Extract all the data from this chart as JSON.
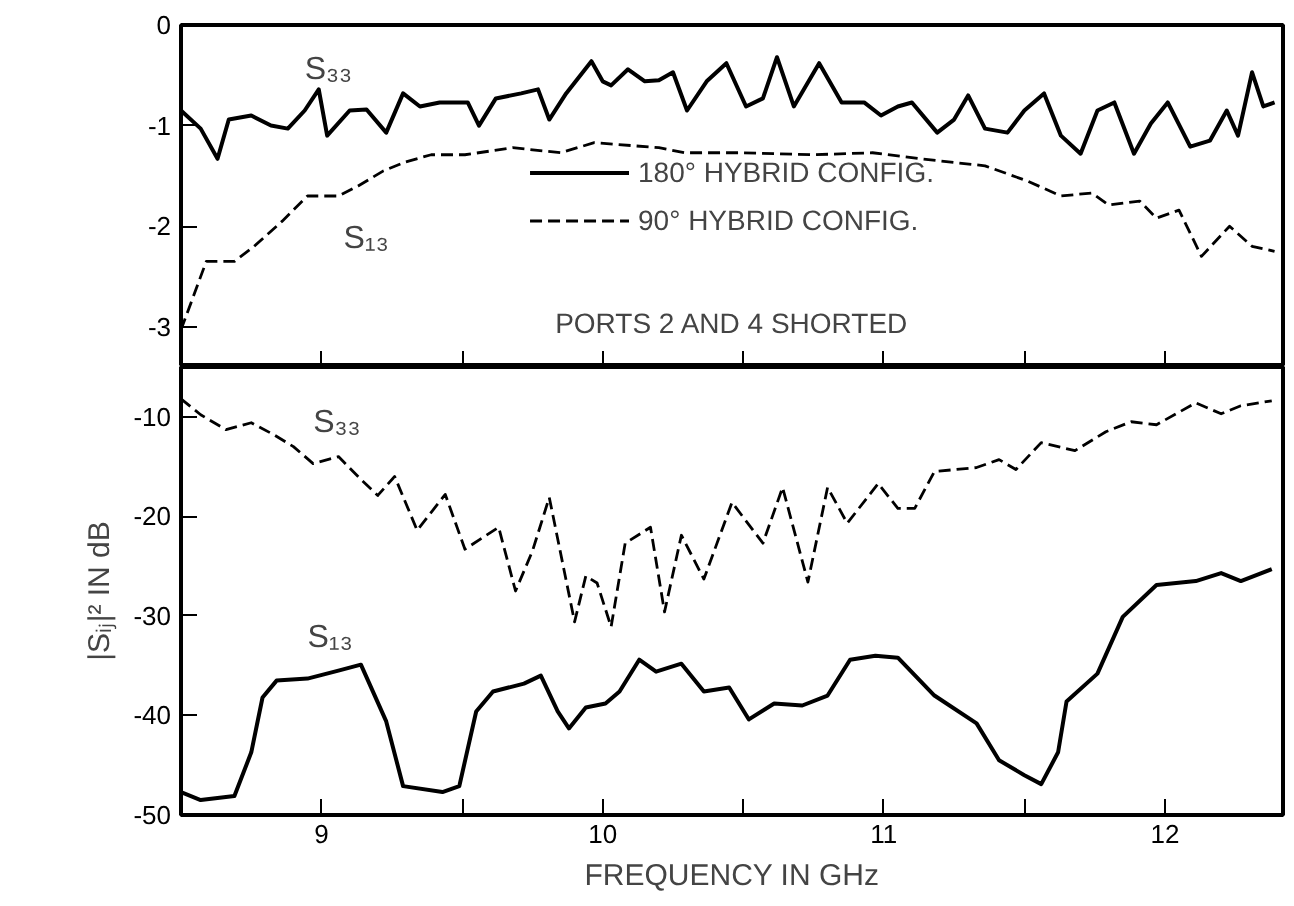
{
  "chart_data": [
    {
      "type": "line",
      "ylabel": null,
      "xlim": [
        8.5,
        12.42
      ],
      "ylim": [
        -3.4,
        0
      ],
      "xticks": [
        {
          "value": 9,
          "label": null
        },
        {
          "value": 9.5,
          "label": null
        },
        {
          "value": 10,
          "label": null
        },
        {
          "value": 10.5,
          "label": null
        },
        {
          "value": 11,
          "label": null
        },
        {
          "value": 11.5,
          "label": null
        },
        {
          "value": 12,
          "label": null
        }
      ],
      "yticks": [
        0,
        -1,
        -2,
        -3
      ],
      "tick_labels": "y",
      "grid": false,
      "legend": "center",
      "annotations": [
        "S₃₃",
        "S₁₃",
        "PORTS 2 AND 4 SHORTED"
      ],
      "series": [
        {
          "name": "180° HYBRID CONFIG.",
          "color": "#000000",
          "line_style": "solid",
          "x": [
            8.5,
            8.57,
            8.63,
            8.67,
            8.75,
            8.82,
            8.88,
            8.94,
            8.99,
            9.02,
            9.1,
            9.16,
            9.23,
            9.29,
            9.35,
            9.42,
            9.52,
            9.56,
            9.62,
            9.71,
            9.77,
            9.81,
            9.87,
            9.96,
            10.0,
            10.03,
            10.09,
            10.15,
            10.2,
            10.25,
            10.3,
            10.37,
            10.44,
            10.51,
            10.57,
            10.62,
            10.68,
            10.77,
            10.85,
            10.93,
            10.99,
            11.05,
            11.1,
            11.19,
            11.25,
            11.3,
            11.36,
            11.44,
            11.5,
            11.57,
            11.63,
            11.7,
            11.76,
            11.82,
            11.89,
            11.95,
            12.01,
            12.09,
            12.16,
            12.22,
            12.26,
            12.31,
            12.35,
            12.39
          ],
          "values": [
            -0.85,
            -1.03,
            -1.33,
            -0.94,
            -0.9,
            -1.0,
            -1.03,
            -0.85,
            -0.64,
            -1.1,
            -0.85,
            -0.84,
            -1.07,
            -0.68,
            -0.81,
            -0.77,
            -0.77,
            -1.0,
            -0.73,
            -0.68,
            -0.64,
            -0.94,
            -0.68,
            -0.36,
            -0.56,
            -0.6,
            -0.44,
            -0.56,
            -0.55,
            -0.47,
            -0.85,
            -0.56,
            -0.38,
            -0.81,
            -0.73,
            -0.32,
            -0.81,
            -0.38,
            -0.77,
            -0.77,
            -0.9,
            -0.81,
            -0.77,
            -1.07,
            -0.94,
            -0.7,
            -1.03,
            -1.07,
            -0.85,
            -0.68,
            -1.1,
            -1.28,
            -0.85,
            -0.77,
            -1.28,
            -0.98,
            -0.77,
            -1.21,
            -1.15,
            -0.85,
            -1.1,
            -0.47,
            -0.81,
            -0.77
          ]
        },
        {
          "name": "90° HYBRID CONFIG.",
          "color": "#000000",
          "line_style": "dashed",
          "x": [
            8.5,
            8.59,
            8.69,
            8.76,
            8.86,
            8.95,
            9.06,
            9.13,
            9.22,
            9.3,
            9.39,
            9.51,
            9.68,
            9.85,
            9.97,
            10.2,
            10.29,
            10.49,
            10.75,
            10.96,
            11.13,
            11.36,
            11.51,
            11.63,
            11.74,
            11.8,
            11.91,
            11.97,
            12.05,
            12.13,
            12.23,
            12.31,
            12.39
          ],
          "values": [
            -3.03,
            -2.35,
            -2.35,
            -2.2,
            -1.95,
            -1.7,
            -1.7,
            -1.6,
            -1.45,
            -1.36,
            -1.29,
            -1.29,
            -1.22,
            -1.27,
            -1.17,
            -1.22,
            -1.27,
            -1.27,
            -1.29,
            -1.27,
            -1.33,
            -1.4,
            -1.55,
            -1.7,
            -1.67,
            -1.79,
            -1.75,
            -1.92,
            -1.84,
            -2.3,
            -2.0,
            -2.2,
            -2.25
          ]
        }
      ]
    },
    {
      "type": "line",
      "ylabel": "|Sᵢⱼ|² IN dB",
      "xlabel": "FREQUENCY IN GHz",
      "xlim": [
        8.5,
        12.42
      ],
      "ylim": [
        -50,
        -5
      ],
      "xticks": [
        9,
        {
          "value": 9.5,
          "label": null
        },
        10,
        {
          "value": 10.5,
          "label": null
        },
        11,
        {
          "value": 11.5,
          "label": null
        },
        12
      ],
      "yticks": [
        -10,
        -20,
        -30,
        -40,
        -50
      ],
      "grid": false,
      "annotations": [
        "S₃₃",
        "S₁₃"
      ],
      "series": [
        {
          "color": "#000000",
          "line_style": "dashed",
          "x": [
            8.5,
            8.57,
            8.66,
            8.75,
            8.83,
            8.9,
            8.97,
            9.06,
            9.14,
            9.2,
            9.26,
            9.34,
            9.44,
            9.51,
            9.63,
            9.69,
            9.75,
            9.81,
            9.9,
            9.94,
            9.98,
            10.03,
            10.08,
            10.17,
            10.22,
            10.28,
            10.36,
            10.46,
            10.57,
            10.64,
            10.73,
            10.8,
            10.87,
            10.98,
            11.05,
            11.11,
            11.18,
            11.33,
            11.41,
            11.47,
            11.56,
            11.68,
            11.79,
            11.88,
            11.97,
            12.11,
            12.2,
            12.27,
            12.38
          ],
          "values": [
            -8.2,
            -9.8,
            -11.3,
            -10.6,
            -11.8,
            -13,
            -14.7,
            -14,
            -16.3,
            -17.9,
            -16,
            -21.4,
            -17.8,
            -23.3,
            -21.1,
            -27.5,
            -23.5,
            -18.1,
            -30.6,
            -26,
            -26.7,
            -31.1,
            -22.7,
            -21.1,
            -29.6,
            -21.9,
            -26.3,
            -18.6,
            -22.7,
            -17.1,
            -26.6,
            -17.1,
            -20.7,
            -16.7,
            -19.2,
            -19.2,
            -15.5,
            -15.1,
            -14.3,
            -15.3,
            -12.6,
            -13.4,
            -11.5,
            -10.5,
            -10.8,
            -8.6,
            -9.7,
            -8.9,
            -8.4
          ]
        },
        {
          "color": "#000000",
          "line_style": "solid",
          "x": [
            8.5,
            8.57,
            8.69,
            8.75,
            8.79,
            8.84,
            8.95,
            9.06,
            9.14,
            9.23,
            9.29,
            9.43,
            9.49,
            9.55,
            9.61,
            9.72,
            9.78,
            9.84,
            9.88,
            9.94,
            10.01,
            10.06,
            10.13,
            10.19,
            10.28,
            10.36,
            10.45,
            10.52,
            10.61,
            10.71,
            10.8,
            10.88,
            10.97,
            11.05,
            11.18,
            11.33,
            11.41,
            11.5,
            11.56,
            11.62,
            11.65,
            11.76,
            11.85,
            11.97,
            12.11,
            12.2,
            12.27,
            12.38
          ],
          "values": [
            -47.7,
            -48.5,
            -48.1,
            -43.7,
            -38.2,
            -36.5,
            -36.3,
            -35.5,
            -34.9,
            -40.6,
            -47.1,
            -47.7,
            -47.1,
            -39.6,
            -37.6,
            -36.8,
            -36,
            -39.6,
            -41.3,
            -39.2,
            -38.8,
            -37.6,
            -34.4,
            -35.6,
            -34.8,
            -37.6,
            -37.2,
            -40.4,
            -38.8,
            -39,
            -38,
            -34.4,
            -34,
            -34.2,
            -38,
            -40.8,
            -44.5,
            -46,
            -46.9,
            -43.7,
            -38.6,
            -35.8,
            -30.1,
            -26.9,
            -26.5,
            -25.7,
            -26.5,
            -25.3
          ]
        }
      ]
    }
  ]
}
